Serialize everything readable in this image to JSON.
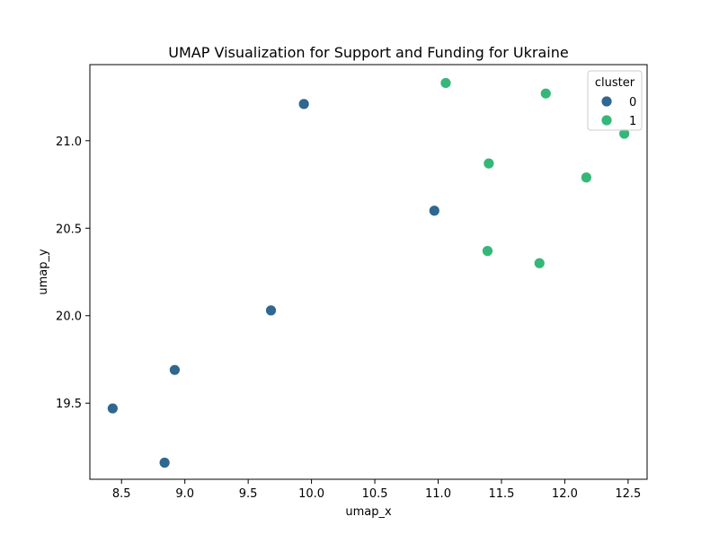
{
  "chart_data": {
    "type": "scatter",
    "title": "UMAP Visualization for Support and Funding for Ukraine",
    "xlabel": "umap_x",
    "ylabel": "umap_y",
    "xlim": [
      8.25,
      12.65
    ],
    "ylim": [
      19.065,
      21.435
    ],
    "xticks": [
      8.5,
      9.0,
      9.5,
      10.0,
      10.5,
      11.0,
      11.5,
      12.0,
      12.5
    ],
    "yticks": [
      19.5,
      20.0,
      20.5,
      21.0
    ],
    "grid": false,
    "legend": {
      "title": "cluster",
      "placement": "top-right"
    },
    "series": [
      {
        "name": "0",
        "color": "#2f6790",
        "points": [
          {
            "x": 9.94,
            "y": 21.21
          },
          {
            "x": 10.97,
            "y": 20.6
          },
          {
            "x": 9.68,
            "y": 20.03
          },
          {
            "x": 8.92,
            "y": 19.69
          },
          {
            "x": 8.43,
            "y": 19.47
          },
          {
            "x": 8.84,
            "y": 19.16
          }
        ]
      },
      {
        "name": "1",
        "color": "#35b779",
        "points": [
          {
            "x": 11.06,
            "y": 21.33
          },
          {
            "x": 11.85,
            "y": 21.27
          },
          {
            "x": 12.47,
            "y": 21.04
          },
          {
            "x": 11.4,
            "y": 20.87
          },
          {
            "x": 12.17,
            "y": 20.79
          },
          {
            "x": 11.39,
            "y": 20.37
          },
          {
            "x": 11.8,
            "y": 20.3
          }
        ]
      }
    ]
  }
}
